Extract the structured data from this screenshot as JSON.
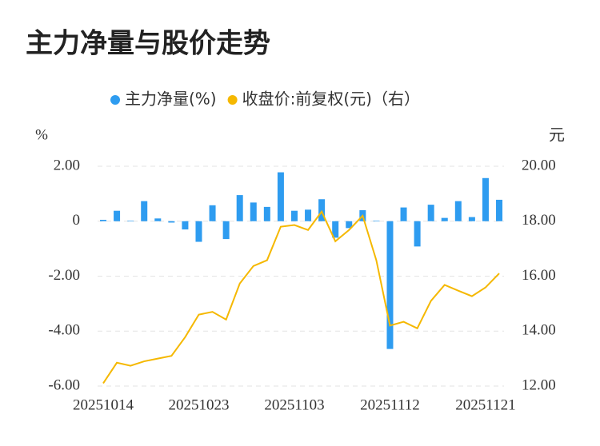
{
  "chart_data": {
    "type": "bar-line",
    "title": "主力净量与股价走势",
    "y_label": "%",
    "y2_label": "元",
    "categories": [
      "20251014",
      null,
      null,
      null,
      null,
      null,
      null,
      "20251023",
      null,
      null,
      null,
      null,
      null,
      null,
      "20251103",
      null,
      null,
      null,
      null,
      null,
      null,
      "20251112",
      null,
      null,
      null,
      null,
      null,
      null,
      "20251121",
      null
    ],
    "series": [
      {
        "name": "主力净量(%)",
        "color": "#2e9cf0",
        "type": "bar",
        "values": [
          0.05,
          0.38,
          0.02,
          0.73,
          0.1,
          -0.05,
          -0.3,
          -0.75,
          0.58,
          -0.65,
          0.95,
          0.68,
          0.52,
          1.78,
          0.38,
          0.42,
          0.8,
          -0.6,
          -0.25,
          0.4,
          0.02,
          -4.65,
          0.5,
          -0.92,
          0.6,
          0.12,
          0.73,
          0.15,
          1.57,
          0.78
        ]
      },
      {
        "name": "收盘价:前复权(元)（右）",
        "color": "#f5b800",
        "type": "line",
        "axis": "y2",
        "values": [
          12.1,
          12.85,
          12.74,
          12.9,
          13.0,
          13.1,
          13.78,
          14.6,
          14.7,
          14.42,
          15.73,
          16.37,
          16.58,
          17.8,
          17.86,
          17.68,
          18.35,
          17.27,
          17.68,
          18.2,
          16.58,
          14.2,
          14.34,
          14.1,
          15.1,
          15.68,
          15.47,
          15.27,
          15.59,
          16.1
        ]
      }
    ],
    "ylim": [
      -6,
      2
    ],
    "yticks": [
      {
        "value": 2,
        "label": "2.00"
      },
      0,
      {
        "value": -2,
        "label": "-2.00"
      },
      {
        "value": -4,
        "label": "-4.00"
      },
      {
        "value": -6,
        "label": "-6.00"
      }
    ],
    "y2lim": [
      12,
      20
    ],
    "y2ticks": [
      {
        "value": 20,
        "label": "20.00"
      },
      {
        "value": 18,
        "label": "18.00"
      },
      {
        "value": 16,
        "label": "16.00"
      },
      {
        "value": 14,
        "label": "14.00"
      },
      {
        "value": 12,
        "label": "12.00"
      }
    ],
    "grid": true
  }
}
